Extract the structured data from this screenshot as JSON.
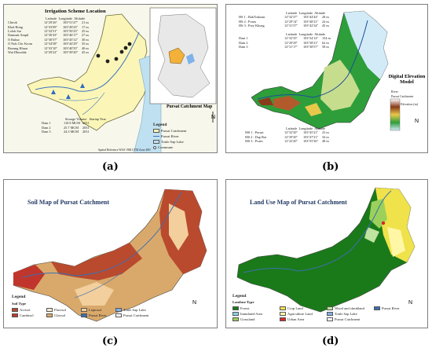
{
  "labels": {
    "a": "(a)",
    "b": "(b)",
    "c": "(c)",
    "d": "(d)"
  },
  "panel_a": {
    "title": "Irrigation Scheme Location",
    "inset_title": "Pursat Catchment Map",
    "table_headers": [
      "Latitude",
      "Longitude",
      "Altitude"
    ],
    "schemes": [
      {
        "name": "Chirok",
        "lat": "12°29'26\"",
        "lon": "103°51'47\"",
        "alt": "21 m"
      },
      {
        "name": "Kbal Hong",
        "lat": "12°33'09\"",
        "lon": "103°49'25\"",
        "alt": "17 m"
      },
      {
        "name": "Lolok Sar",
        "lat": "12°32'51\"",
        "lon": "103°50'23\"",
        "alt": "25 m"
      },
      {
        "name": "Damnak Ampil",
        "lat": "12°30'43\"",
        "lon": "103°46'17\"",
        "alt": "27 m"
      },
      {
        "name": "O Ruhur",
        "lat": "12°30'57\"",
        "lon": "103°45'12\"",
        "alt": "30 m"
      },
      {
        "name": "O Nok Chr. Krom",
        "lat": "12°34'58\"",
        "lon": "103°44'29\"",
        "alt": "35 m"
      },
      {
        "name": "Boeung Khnar",
        "lat": "12°33'10\"",
        "lon": "103°40'35\"",
        "alt": "40 m"
      },
      {
        "name": "Wat Dhoodak",
        "lat": "12°29'22\"",
        "lon": "103°39'20\"",
        "alt": "45 m"
      }
    ],
    "storage_headers": [
      "Storage Volume",
      "Startup Year"
    ],
    "storage": [
      {
        "name": "Dam 1",
        "volume": "110.8 MCM",
        "year": "2031"
      },
      {
        "name": "Dam 2",
        "volume": "25.7 MCM",
        "year": "2031"
      },
      {
        "name": "Dam 3",
        "volume": "24.3 MCM",
        "year": "2031"
      }
    ],
    "legend_title": "Legend",
    "legend": [
      "Pursat Catchment",
      "Pursat River",
      "Tonle Sap Lake",
      "Commune"
    ],
    "footnote": "Spatial Reference WGS 1984 UTM Zone 48N"
  },
  "panel_b": {
    "hs_headers": [
      "Latitude",
      "Longitude",
      "Altitude"
    ],
    "hs": [
      {
        "name": "HS 1 : BakTrakoun",
        "lat": "12°32'37\"",
        "lon": "103°44'44\"",
        "alt": "28 m"
      },
      {
        "name": "HS 2 : Pvam",
        "lat": "12°29'14\"",
        "lon": "103°48'21\"",
        "alt": "24 m"
      },
      {
        "name": "HS 3 : Prey Khong",
        "lat": "12°31'37\"",
        "lon": "103°42'34\"",
        "alt": "45 m"
      }
    ],
    "dam_headers": [
      "Latitude",
      "Longitude",
      "Altitude"
    ],
    "dams": [
      {
        "name": "Dam 1",
        "lat": "12°32'35\"",
        "lon": "103°34'14\"",
        "alt": "154 m"
      },
      {
        "name": "Dam 2",
        "lat": "12°29'29\"",
        "lon": "103°38'21\"",
        "alt": "62 m"
      },
      {
        "name": "Dam 3",
        "lat": "12°31'17\"",
        "lon": "103°38'57\"",
        "alt": "58 m"
      }
    ],
    "ms_headers": [
      "Latitude",
      "Longitude",
      "Altitude"
    ],
    "ms": [
      {
        "name": "MS 1 : Pursat",
        "lat": "12°32'30\"",
        "lon": "103°45'21\"",
        "alt": "23 m"
      },
      {
        "name": "MS 2 : Dap Bat",
        "lat": "12°29'30\"",
        "lon": "103°47'21\"",
        "alt": "34 m"
      },
      {
        "name": "MS 3 : Pvam",
        "lat": "12°22'20\"",
        "lon": "103°55'36\"",
        "alt": "48 m"
      }
    ],
    "title": "Digital Elevation Model",
    "legend": [
      "River",
      "Pursat Catchment",
      "Elevation (m)"
    ]
  },
  "panel_c": {
    "title": "Soil  Map of Pursat Catchment",
    "legend_title": "Legend",
    "group_title": "Soil Type",
    "items": [
      {
        "name": "Acrisol",
        "color": "#b94a2e"
      },
      {
        "name": "Cambisol",
        "color": "#c0362c"
      },
      {
        "name": "Fluvisol",
        "color": "#f3ead0"
      },
      {
        "name": "Gleysol",
        "color": "#d9a96b"
      },
      {
        "name": "Leptosol",
        "color": "#f2cf9d"
      },
      {
        "name": "Pursat River",
        "color": "#3c6fb0"
      },
      {
        "name": "Tonle Sap Lake",
        "color": "#7fb2e8"
      },
      {
        "name": "Pursat Catchment",
        "color": "#ffffff"
      }
    ]
  },
  "panel_d": {
    "title": "Land Use Map of Pursat Catchment",
    "legend_title": "Legend",
    "group_title": "Landuse Type",
    "items": [
      {
        "name": "Forest",
        "color": "#1a7a1a"
      },
      {
        "name": "Inundated Area",
        "color": "#8fd1e8"
      },
      {
        "name": "Grassland",
        "color": "#9bd15b"
      },
      {
        "name": "Crop Land",
        "color": "#f0e24a"
      },
      {
        "name": "Agriculture Land",
        "color": "#fff7a6"
      },
      {
        "name": "Urban Area",
        "color": "#d62828"
      },
      {
        "name": "Wood and shrubland",
        "color": "#bfe3a0"
      },
      {
        "name": "Tonle Sap Lake",
        "color": "#7fb2e8"
      },
      {
        "name": "Pursat Catchment",
        "color": "#ffffff"
      },
      {
        "name": "Pursat River",
        "color": "#3c6fb0"
      }
    ]
  }
}
